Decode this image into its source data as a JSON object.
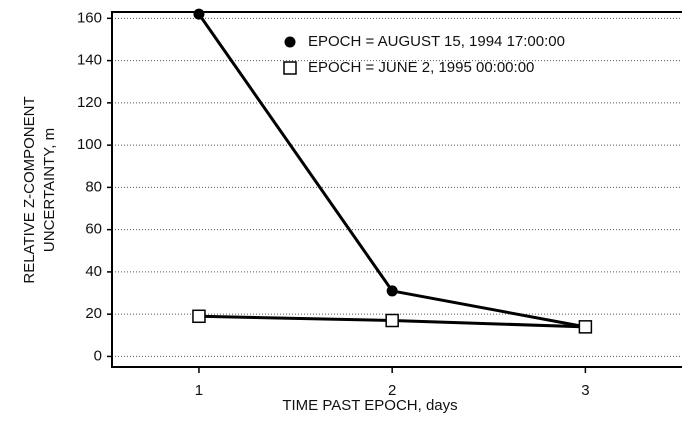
{
  "chart_data": {
    "type": "line",
    "xlabel": "TIME PAST EPOCH, days",
    "ylabel": [
      "RELATIVE Z-COMPONENT",
      "UNCERTAINTY, m"
    ],
    "x": [
      1,
      2,
      3
    ],
    "series": [
      {
        "name": "EPOCH = AUGUST 15, 1994 17:00:00",
        "color": "#000000",
        "marker": "circle",
        "values": [
          162,
          31,
          14
        ]
      },
      {
        "name": "EPOCH = JUNE 2, 1995 00:00:00",
        "color": "#000000",
        "marker": "square",
        "values": [
          19,
          17,
          14
        ]
      }
    ],
    "xlim": [
      0.55,
      3.5
    ],
    "xticks": [
      1,
      2,
      3
    ],
    "ylim": [
      -5,
      163
    ],
    "yticks": [
      0,
      20,
      40,
      60,
      80,
      100,
      120,
      140,
      160
    ],
    "grid": true,
    "legend": "upper right"
  }
}
